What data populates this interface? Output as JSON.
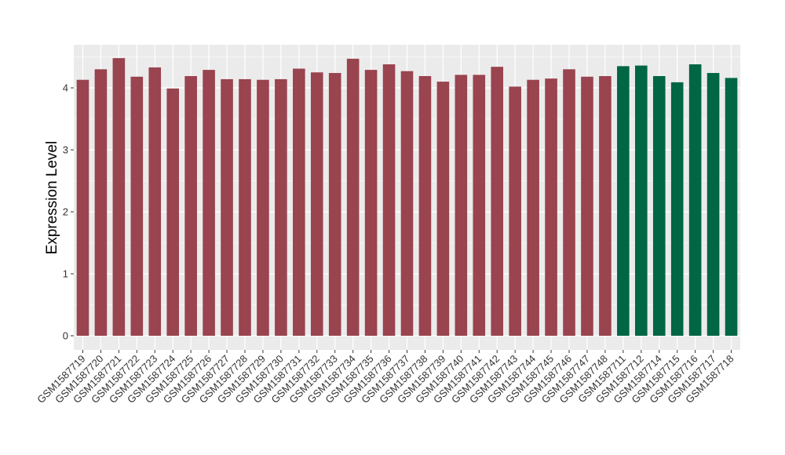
{
  "chart_data": {
    "type": "bar",
    "ylabel": "Expression Level",
    "xlabel": "",
    "ylim": [
      0,
      4.6
    ],
    "yticks": [
      0,
      1,
      2,
      3,
      4
    ],
    "grid": true,
    "colors": {
      "group_a": "#99444f",
      "group_b": "#006643",
      "panel": "#ebebeb",
      "grid": "#ffffff"
    },
    "categories": [
      "GSM1587719",
      "GSM1587720",
      "GSM1587721",
      "GSM1587722",
      "GSM1587723",
      "GSM1587724",
      "GSM1587725",
      "GSM1587726",
      "GSM1587727",
      "GSM1587728",
      "GSM1587729",
      "GSM1587730",
      "GSM1587731",
      "GSM1587732",
      "GSM1587733",
      "GSM1587734",
      "GSM1587735",
      "GSM1587736",
      "GSM1587737",
      "GSM1587738",
      "GSM1587739",
      "GSM1587740",
      "GSM1587741",
      "GSM1587742",
      "GSM1587743",
      "GSM1587744",
      "GSM1587745",
      "GSM1587746",
      "GSM1587747",
      "GSM1587748",
      "GSM1587711",
      "GSM1587712",
      "GSM1587714",
      "GSM1587715",
      "GSM1587716",
      "GSM1587717",
      "GSM1587718"
    ],
    "values": [
      4.13,
      4.3,
      4.48,
      4.18,
      4.33,
      3.99,
      4.19,
      4.29,
      4.14,
      4.14,
      4.13,
      4.14,
      4.31,
      4.25,
      4.24,
      4.47,
      4.29,
      4.38,
      4.27,
      4.19,
      4.1,
      4.21,
      4.21,
      4.34,
      4.02,
      4.13,
      4.15,
      4.3,
      4.18,
      4.19,
      4.35,
      4.36,
      4.19,
      4.09,
      4.38,
      4.24,
      4.16
    ],
    "groups": [
      "a",
      "a",
      "a",
      "a",
      "a",
      "a",
      "a",
      "a",
      "a",
      "a",
      "a",
      "a",
      "a",
      "a",
      "a",
      "a",
      "a",
      "a",
      "a",
      "a",
      "a",
      "a",
      "a",
      "a",
      "a",
      "a",
      "a",
      "a",
      "a",
      "a",
      "b",
      "b",
      "b",
      "b",
      "b",
      "b",
      "b"
    ]
  }
}
